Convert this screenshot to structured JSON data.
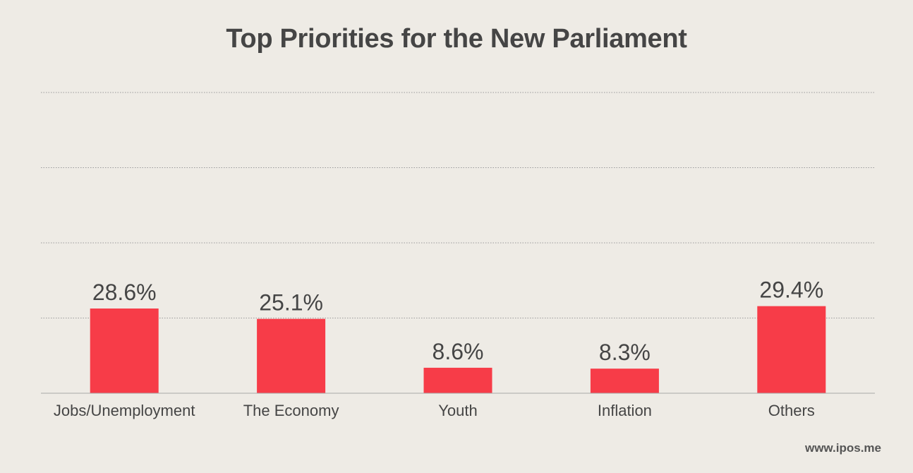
{
  "chart_data": {
    "type": "bar",
    "title": "Top Priorities for the New Parliament",
    "categories": [
      "Jobs/Unemployment",
      "The Economy",
      "Youth",
      "Inflation",
      "Others"
    ],
    "values": [
      28.6,
      25.1,
      8.6,
      8.3,
      29.4
    ],
    "value_labels": [
      "28.6%",
      "25.1%",
      "8.6%",
      "8.3%",
      "29.4%"
    ],
    "xlabel": "",
    "ylabel": "",
    "ylim": [
      0,
      100
    ],
    "grid": true,
    "bar_color": "#f73c48",
    "grid_color": "#9a9a9a"
  },
  "footer": {
    "source": "www.ipos.me"
  }
}
